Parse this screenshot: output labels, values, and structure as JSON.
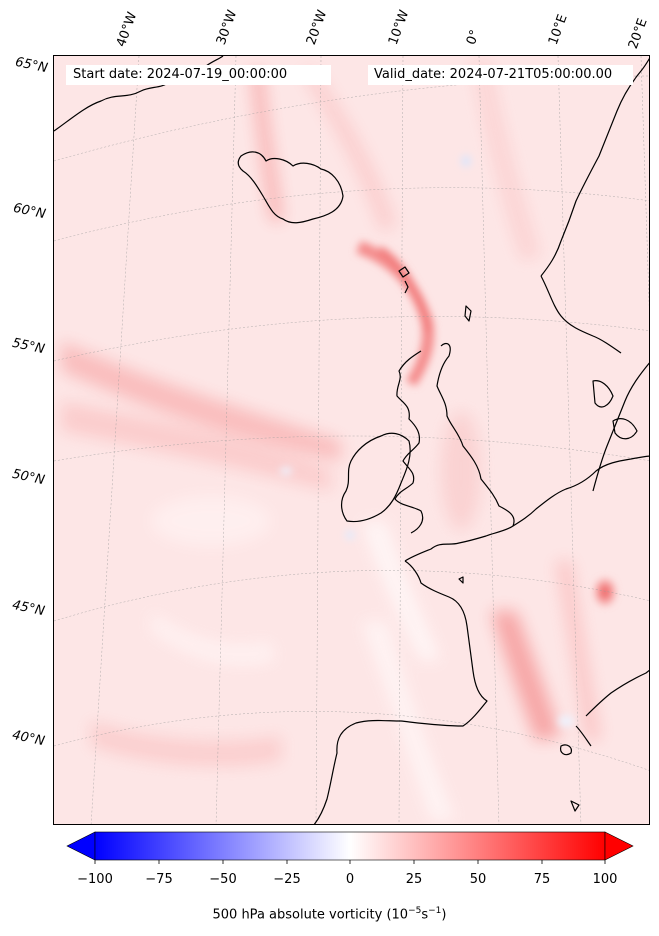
{
  "header": {
    "start_date": "Start date: 2024-07-19_00:00:00",
    "valid_date": "Valid_date: 2024-07-21T05:00:00.00"
  },
  "map": {
    "longitude_labels": [
      "40°W",
      "30°W",
      "20°W",
      "10°W",
      "0°",
      "10°E",
      "20°E"
    ],
    "latitude_labels": [
      "65°N",
      "60°N",
      "55°N",
      "50°N",
      "45°N",
      "40°N"
    ],
    "background_color": "#fde6e6",
    "coastline_color": "#000000"
  },
  "colorbar": {
    "label_text": "500 hPa absolute vorticity (10",
    "label_sup1": "−5",
    "label_mid": "s",
    "label_sup2": "−1",
    "label_end": ")",
    "ticks": [
      "−100",
      "−75",
      "−50",
      "−25",
      "0",
      "25",
      "50",
      "75",
      "100"
    ],
    "min_color": "#0000ff",
    "mid_color": "#ffffff",
    "max_color": "#ff0000"
  }
}
